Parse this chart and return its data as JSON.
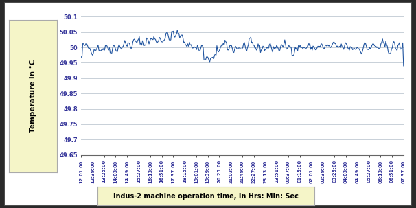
{
  "ylabel": "Temperature in °C",
  "xlabel_box": "Indus-2 machine operation time, in Hrs: Min: Sec",
  "ylim": [
    49.65,
    50.1
  ],
  "yticks": [
    49.65,
    49.7,
    49.75,
    49.8,
    49.85,
    49.9,
    49.95,
    50.0,
    50.05,
    50.1
  ],
  "ytick_labels": [
    "49.65",
    "49.7",
    "49.75",
    "49.8",
    "49.85",
    "49.9",
    "49.95",
    "50",
    "50.05",
    "50.1"
  ],
  "xtick_labels": [
    "12:01:00",
    "12:39:00",
    "13:25:00",
    "14:03:00",
    "14:49:00",
    "15:27:00",
    "16:13:00",
    "16:51:00",
    "17:37:00",
    "18:15:00",
    "19:01:00",
    "19:39:00",
    "20:25:00",
    "21:03:00",
    "21:49:00",
    "22:27:00",
    "23:13:00",
    "23:51:00",
    "00:37:00",
    "01:15:00",
    "02:01:00",
    "02:39:00",
    "03:25:00",
    "04:03:00",
    "04:49:00",
    "05:27:00",
    "06:13:00",
    "06:51:00",
    "07:37:00"
  ],
  "line_color": "#2155A0",
  "line_width": 0.8,
  "outer_bg": "#2a2a2a",
  "inner_bg": "#ffffff",
  "plot_bg": "#ffffff",
  "grid_color": "#c8d0d8",
  "ylabel_box_color": "#f5f5c8",
  "xlabel_box_color": "#f5f5c8",
  "seed": 42,
  "n_points": 400,
  "base_temp": 50.0,
  "noise_std": 0.018
}
